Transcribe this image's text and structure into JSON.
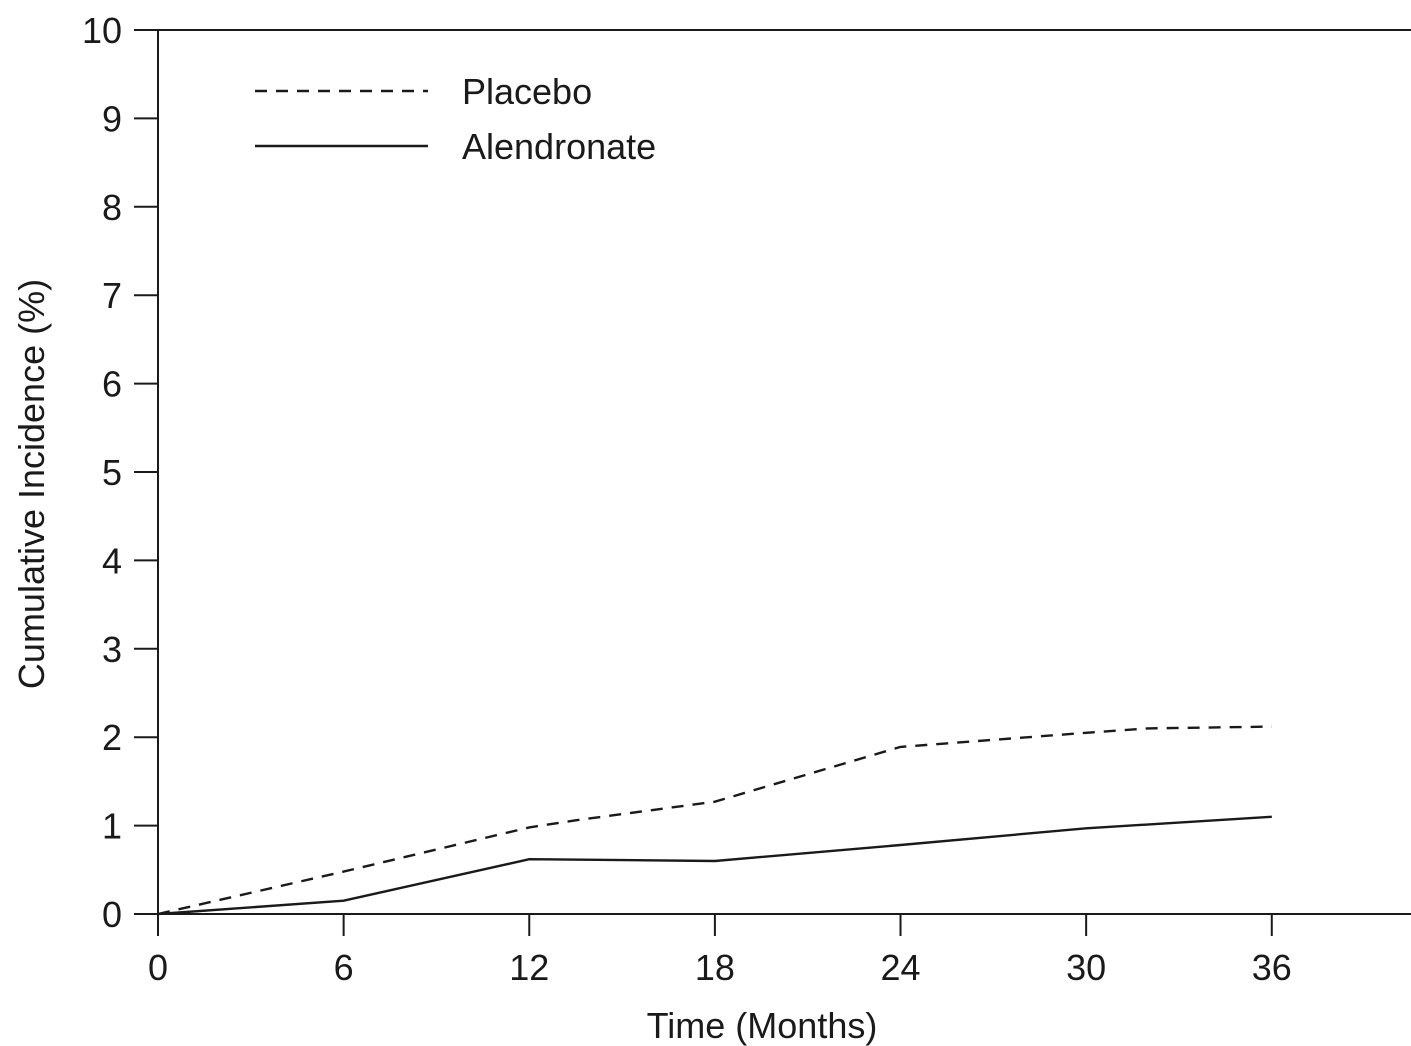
{
  "chart_data": {
    "type": "line",
    "title": "",
    "xlabel": "Time (Months)",
    "ylabel": "Cumulative Incidence (%)",
    "xlim": [
      0,
      40.5
    ],
    "ylim": [
      0,
      10
    ],
    "x_ticks": [
      0,
      6,
      12,
      18,
      24,
      30,
      36
    ],
    "y_ticks": [
      0,
      1,
      2,
      3,
      4,
      5,
      6,
      7,
      8,
      9,
      10
    ],
    "grid": false,
    "legend_position": "top-left",
    "series": [
      {
        "name": "Placebo",
        "line_style": "dashed",
        "color": "#1a1a1a",
        "x": [
          0,
          6,
          12,
          13.5,
          18,
          24,
          30,
          32,
          36
        ],
        "y": [
          0,
          0.48,
          0.98,
          1.06,
          1.27,
          1.89,
          2.05,
          2.1,
          2.12
        ]
      },
      {
        "name": "Alendronate",
        "line_style": "solid",
        "color": "#1a1a1a",
        "x": [
          0,
          6,
          12,
          18,
          24,
          30,
          36
        ],
        "y": [
          0,
          0.15,
          0.62,
          0.6,
          0.78,
          0.97,
          1.1
        ]
      }
    ]
  }
}
